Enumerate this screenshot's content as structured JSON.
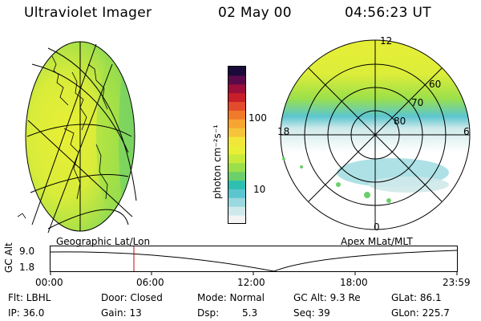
{
  "header": {
    "instrument": "Ultraviolet Imager",
    "date": "02 May 00",
    "time": "04:56:23 UT"
  },
  "left_panel": {
    "label": "Geographic Lat/Lon"
  },
  "right_panel": {
    "label": "Apex MLat/MLT",
    "mlt_labels": [
      "12",
      "18",
      "6",
      "0"
    ],
    "lat_labels": [
      "60",
      "70",
      "80"
    ]
  },
  "colorbar": {
    "unit_label": "photon cm⁻²s⁻¹",
    "ticks": [
      "100",
      "10"
    ],
    "colors": [
      "#f4f4f4",
      "#cfe9ea",
      "#9ad9df",
      "#5cc6cf",
      "#2fbfb0",
      "#6ccf6a",
      "#9be04a",
      "#c8ea3a",
      "#e8ef35",
      "#f3e63a",
      "#f6c43a",
      "#f7a531",
      "#ef7b2a",
      "#e24c2c",
      "#c71f2a",
      "#9b0f3a",
      "#5a0a4a",
      "#1a0a3a"
    ]
  },
  "alt_plot": {
    "ylabel": "GC Alt",
    "yticks": [
      "9.0",
      "1.8"
    ],
    "xticks": [
      "00:00",
      "06:00",
      "12:00",
      "18:00",
      "23:59"
    ],
    "marker_color": "#cc0000"
  },
  "info": {
    "flt": "Flt: LBHL",
    "ip": "IP: 36.0",
    "door": "Door: Closed",
    "gain": "Gain: 13",
    "mode": "Mode: Normal",
    "dsp_label": "Dsp:",
    "dsp_value": "5.3",
    "gc_alt": "GC Alt: 9.3 Re",
    "seq": "Seq: 39",
    "glat": "GLat: 86.1",
    "glon": "GLon: 225.7"
  }
}
